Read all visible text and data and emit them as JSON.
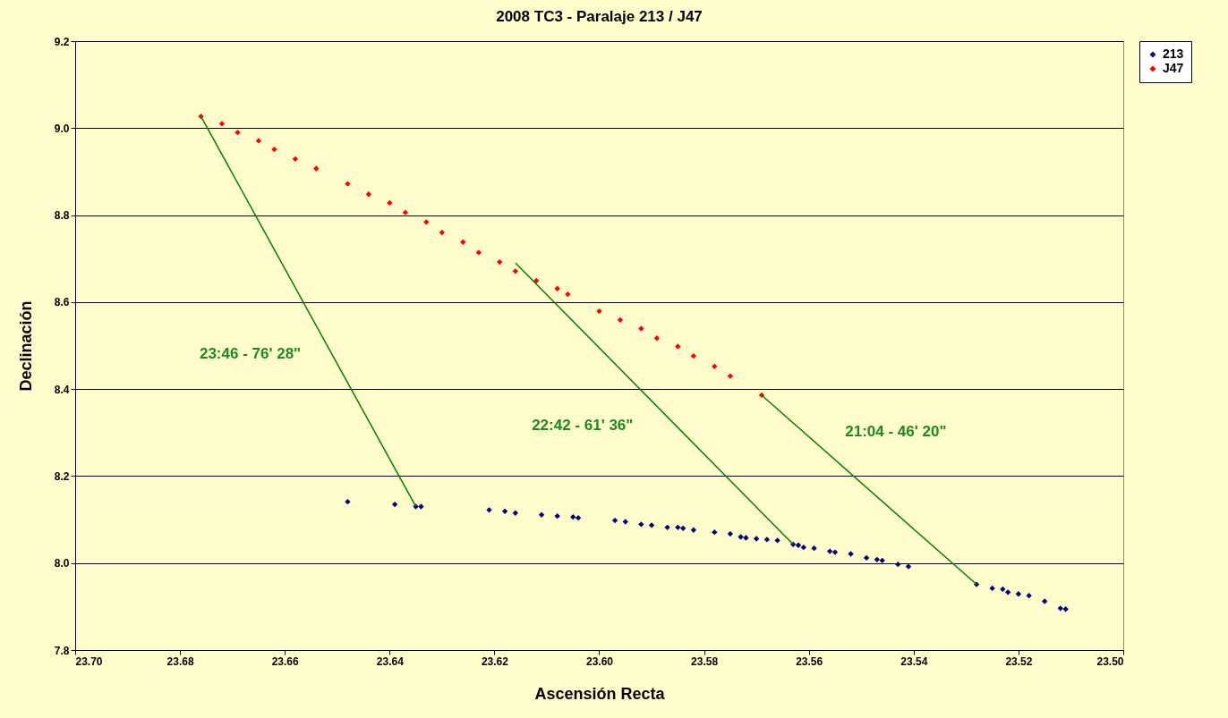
{
  "chart_data": {
    "type": "scatter",
    "title": "2008 TC3 - Paralaje 213 / J47",
    "xlabel": "Ascensión Recta",
    "ylabel": "Declinación",
    "xlim": [
      23.7,
      23.5
    ],
    "xticks": [
      {
        "value": 23.7,
        "label": "23.70"
      },
      {
        "value": 23.68,
        "label": "23.68"
      },
      {
        "value": 23.66,
        "label": "23.66"
      },
      {
        "value": 23.64,
        "label": "23.64"
      },
      {
        "value": 23.62,
        "label": "23.62"
      },
      {
        "value": 23.6,
        "label": "23.60"
      },
      {
        "value": 23.58,
        "label": "23.58"
      },
      {
        "value": 23.56,
        "label": "23.56"
      },
      {
        "value": 23.54,
        "label": "23.54"
      },
      {
        "value": 23.52,
        "label": "23.52"
      },
      {
        "value": 23.5,
        "label": "23.50"
      }
    ],
    "ylim": [
      7.8,
      9.2
    ],
    "yticks": [
      7.8,
      {
        "value": 8.0,
        "label": "8.0"
      },
      8.2,
      8.4,
      8.6,
      8.8,
      {
        "value": 9.0,
        "label": "9.0"
      },
      9.2
    ],
    "grid": "y",
    "legend": "right",
    "marker": "diamond",
    "series": [
      {
        "name": "213",
        "color": "#000080",
        "x": [
          23.648,
          23.639,
          23.635,
          23.634,
          23.621,
          23.618,
          23.616,
          23.611,
          23.608,
          23.605,
          23.604,
          23.597,
          23.595,
          23.592,
          23.59,
          23.587,
          23.585,
          23.584,
          23.582,
          23.578,
          23.575,
          23.573,
          23.572,
          23.57,
          23.568,
          23.566,
          23.563,
          23.562,
          23.561,
          23.559,
          23.556,
          23.555,
          23.552,
          23.549,
          23.547,
          23.546,
          23.543,
          23.541,
          23.528,
          23.525,
          23.523,
          23.522,
          23.52,
          23.518,
          23.515,
          23.512,
          23.511
        ],
        "values": [
          8.141,
          8.135,
          8.13,
          8.13,
          8.122,
          8.119,
          8.115,
          8.111,
          8.108,
          8.106,
          8.104,
          8.098,
          8.095,
          8.089,
          8.087,
          8.082,
          8.082,
          8.08,
          8.076,
          8.071,
          8.067,
          8.06,
          8.058,
          8.056,
          8.054,
          8.052,
          8.043,
          8.041,
          8.036,
          8.034,
          8.027,
          8.025,
          8.021,
          8.012,
          8.008,
          8.006,
          7.997,
          7.992,
          7.951,
          7.942,
          7.94,
          7.933,
          7.929,
          7.925,
          7.912,
          7.896,
          7.894
        ]
      },
      {
        "name": "J47",
        "color": "#ff0000",
        "x": [
          23.676,
          23.672,
          23.669,
          23.665,
          23.662,
          23.658,
          23.654,
          23.648,
          23.644,
          23.64,
          23.637,
          23.633,
          23.63,
          23.626,
          23.623,
          23.619,
          23.616,
          23.612,
          23.608,
          23.606,
          23.6,
          23.596,
          23.592,
          23.589,
          23.585,
          23.582,
          23.578,
          23.575,
          23.569
        ],
        "values": [
          9.027,
          9.01,
          8.99,
          8.971,
          8.951,
          8.929,
          8.907,
          8.872,
          8.848,
          8.828,
          8.806,
          8.784,
          8.76,
          8.738,
          8.714,
          8.692,
          8.671,
          8.649,
          8.631,
          8.618,
          8.579,
          8.559,
          8.539,
          8.517,
          8.498,
          8.476,
          8.452,
          8.43,
          8.386
        ]
      },
      {
        "type": "line",
        "marker": "none",
        "color": "#008000",
        "x": [
          23.676,
          23.635
        ],
        "values": [
          9.027,
          8.13
        ]
      },
      {
        "type": "line",
        "marker": "none",
        "color": "#008000",
        "x": [
          23.616,
          23.563
        ],
        "values": [
          8.69,
          8.043
        ]
      },
      {
        "type": "line",
        "marker": "none",
        "color": "#008000",
        "x": [
          23.569,
          23.528
        ],
        "values": [
          8.386,
          7.951
        ]
      }
    ],
    "annotations": [
      "23:46 - 76' 28\"",
      "22:42 - 61' 36\"",
      "21:04 - 46' 20\""
    ]
  }
}
